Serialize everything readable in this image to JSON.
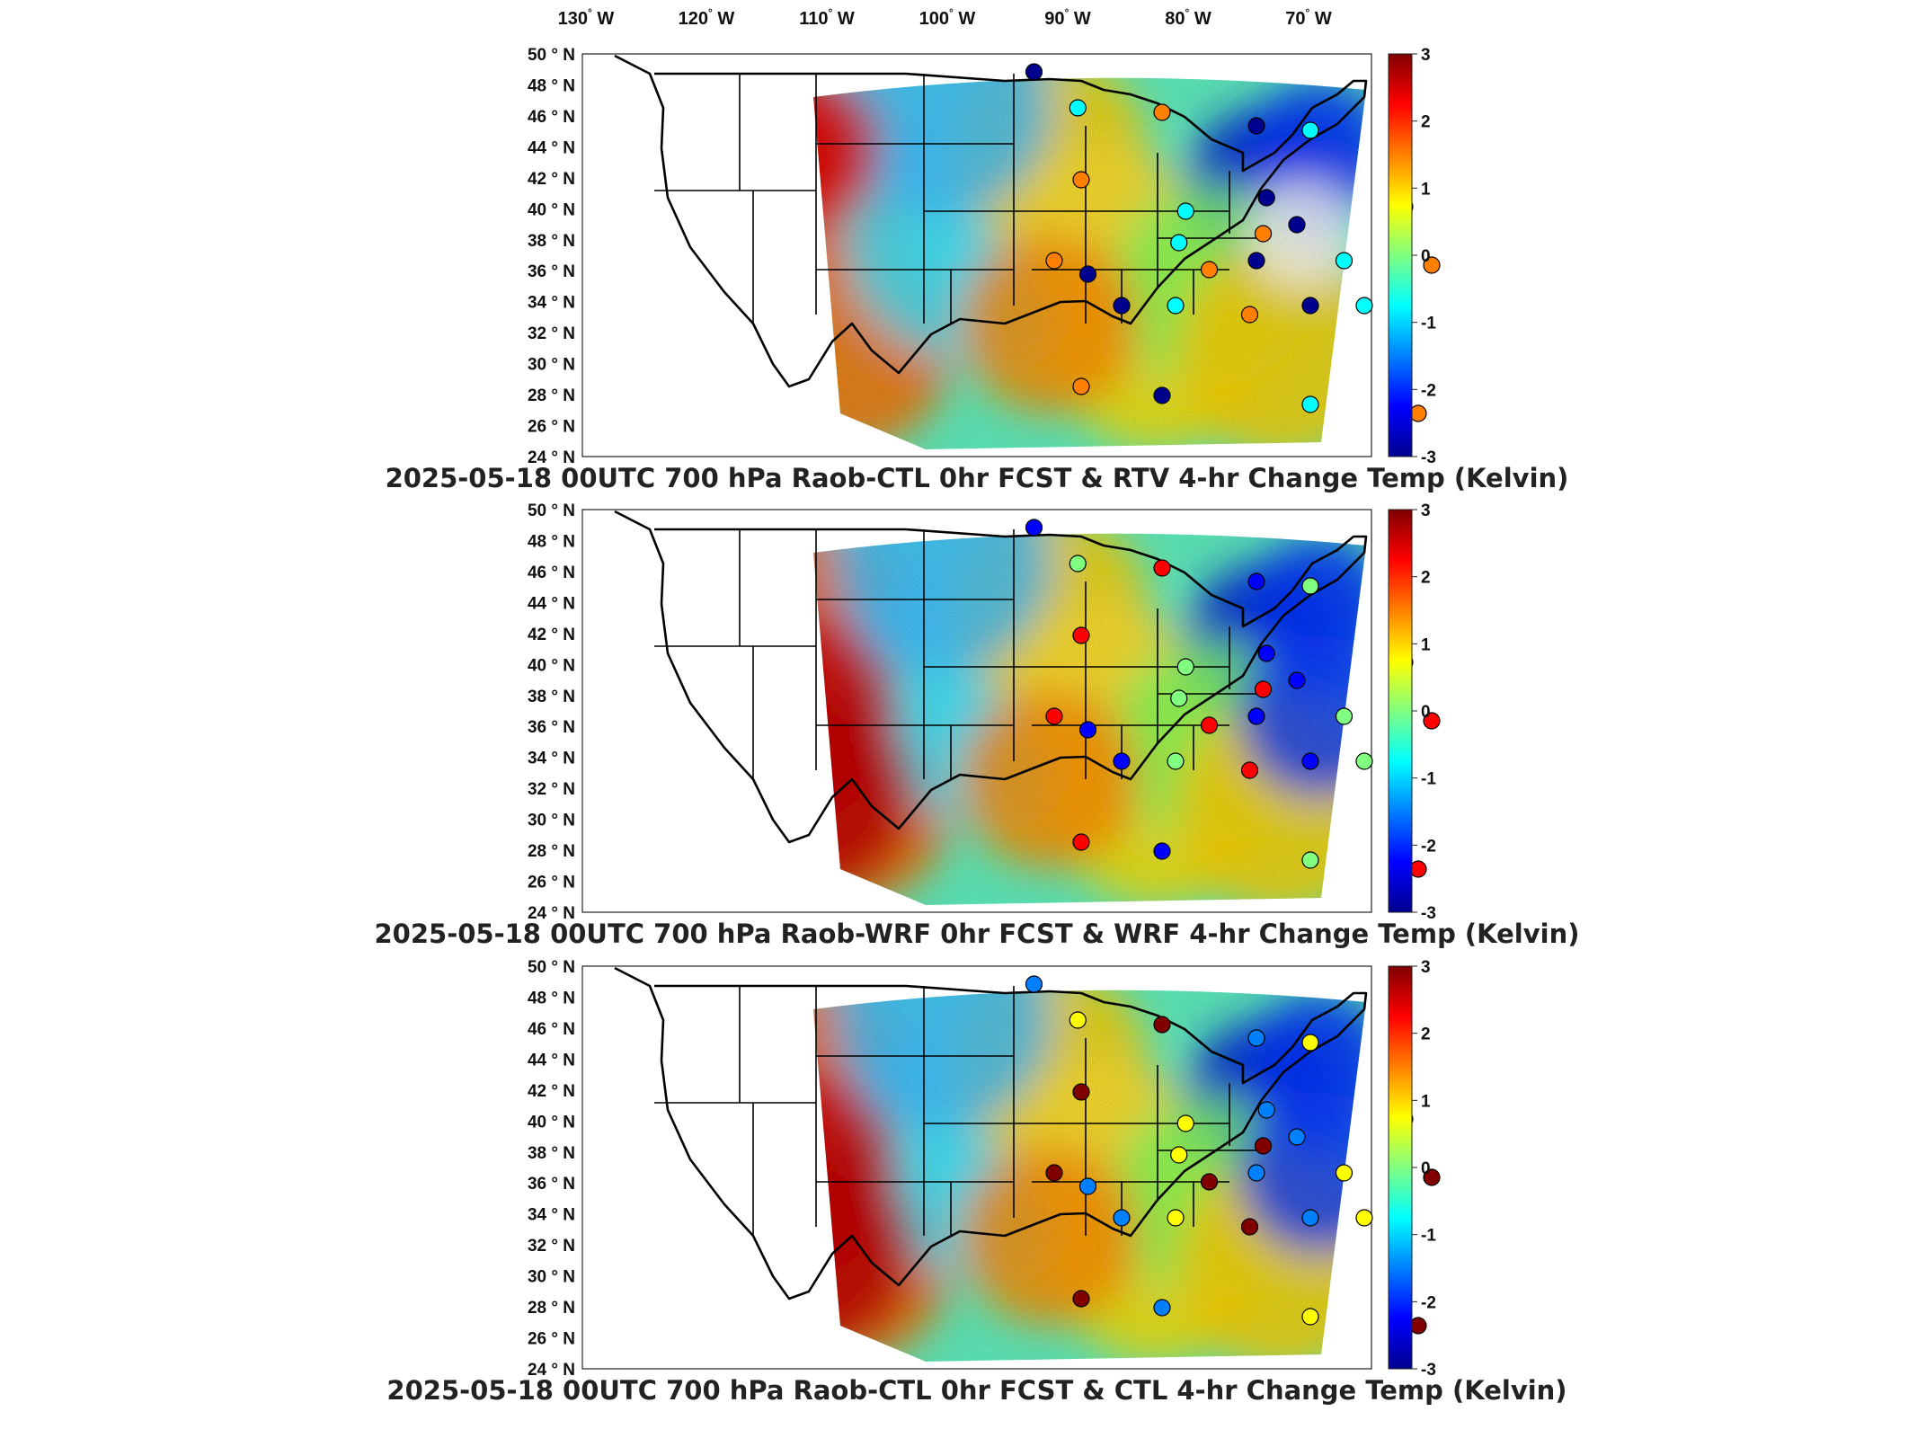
{
  "lon_labels": [
    "130",
    "120",
    "110",
    "100",
    "90",
    "80",
    "70"
  ],
  "lon_suffix": "W",
  "lat_labels": [
    "50",
    "48",
    "46",
    "44",
    "42",
    "40",
    "38",
    "36",
    "34",
    "32",
    "30",
    "28",
    "26",
    "24"
  ],
  "lat_suffix": "N",
  "degree_symbol": "°",
  "colorbar": {
    "ticks": [
      "3",
      "2",
      "1",
      "0",
      "-1",
      "-2",
      "-3"
    ],
    "range": [
      -3,
      3
    ],
    "colormap": "jet",
    "colors": [
      "#00008f",
      "#0000ff",
      "#0080ff",
      "#00ffff",
      "#80ff80",
      "#ffff00",
      "#ff8000",
      "#ff0000",
      "#800000"
    ]
  },
  "panels": [
    {
      "title": "2025-05-18 00UTC 700 hPa Raob-CTL 0hr FCST & RTV 4-hr Change Temp (Kelvin)"
    },
    {
      "title": "2025-05-18 00UTC 700 hPa Raob-WRF 0hr FCST & WRF 4-hr Change Temp (Kelvin)"
    },
    {
      "title": "2025-05-18 00UTC 700 hPa Raob-CTL 0hr FCST & CTL 4-hr Change Temp (Kelvin)"
    }
  ]
}
